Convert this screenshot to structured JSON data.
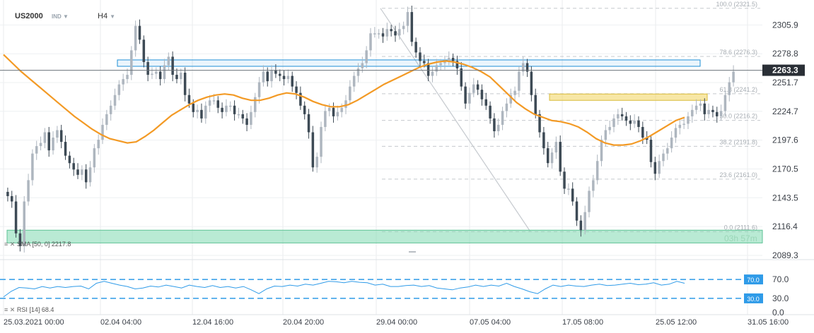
{
  "header": {
    "symbol": "US2000",
    "instrument_type": "IND",
    "timeframe": "H4"
  },
  "indicators": {
    "sma_label": "SMA [50, 0]",
    "sma_value": "2217.8",
    "rsi_label": "RSI [14]",
    "rsi_value": "68.4"
  },
  "countdown": "03h 57m",
  "colors": {
    "up_candle": "#aeb6bf",
    "down_candle": "#3d4a55",
    "sma": "#f39a25",
    "rsi_line": "#2f9be8",
    "rsi_levels": "#2f9be8",
    "resistance_zone": "#1e8fd6",
    "support_zone": "#f1d45d",
    "bottom_zone": "#7fd9b1",
    "price_badge": "#2a2f36",
    "fib_line": "#9aa0a6"
  },
  "chart_data": {
    "type": "candlestick",
    "price_axis": {
      "ticks": [
        "2305.9",
        "2278.8",
        "2251.7",
        "2224.7",
        "2197.6",
        "2170.5",
        "2143.5",
        "2116.4",
        "2089.3"
      ],
      "range": [
        2089.3,
        2326
      ],
      "current_price": "2263.3"
    },
    "time_axis": [
      "25.03.2021 00:00",
      "02.04 04:00",
      "12.04 16:00",
      "20.04 20:00",
      "29.04 00:00",
      "07.05 04:00",
      "17.05 08:00",
      "25.05 12:00",
      "31.05 16:00"
    ],
    "fibonacci": [
      {
        "label": "100.0 (2321.5)",
        "price": 2321.5
      },
      {
        "label": "78.6 (2276.3)",
        "price": 2276.3
      },
      {
        "label": "61.8 (2241.2)",
        "price": 2241.2
      },
      {
        "label": "50.0 (2216.2)",
        "price": 2216.2
      },
      {
        "label": "38.2 (2191.8)",
        "price": 2191.8
      },
      {
        "label": "23.6 (2161.0)",
        "price": 2161.0
      },
      {
        "label": "0.0 (2111.6)",
        "price": 2111.6
      }
    ],
    "zones": [
      {
        "name": "resistance",
        "from": 2267,
        "to": 2273
      },
      {
        "name": "support",
        "from": 2235,
        "to": 2241
      },
      {
        "name": "bottom",
        "from": 2101,
        "to": 2113
      }
    ],
    "closes": [
      2145,
      2140,
      2110,
      2098,
      2140,
      2160,
      2185,
      2192,
      2195,
      2205,
      2188,
      2200,
      2207,
      2196,
      2183,
      2176,
      2170,
      2165,
      2170,
      2158,
      2172,
      2190,
      2198,
      2212,
      2222,
      2230,
      2240,
      2250,
      2255,
      2259,
      2282,
      2305,
      2292,
      2271,
      2259,
      2260,
      2262,
      2255,
      2268,
      2276,
      2259,
      2255,
      2261,
      2240,
      2232,
      2224,
      2226,
      2218,
      2230,
      2235,
      2235,
      2228,
      2224,
      2230,
      2230,
      2222,
      2222,
      2218,
      2212,
      2224,
      2238,
      2252,
      2262,
      2253,
      2263,
      2260,
      2258,
      2255,
      2258,
      2248,
      2242,
      2230,
      2222,
      2205,
      2172,
      2182,
      2210,
      2225,
      2228,
      2220,
      2224,
      2228,
      2235,
      2248,
      2258,
      2265,
      2270,
      2282,
      2298,
      2298,
      2298,
      2295,
      2302,
      2300,
      2296,
      2302,
      2305,
      2318,
      2290,
      2280,
      2272,
      2270,
      2258,
      2262,
      2268,
      2270,
      2272,
      2275,
      2272,
      2265,
      2248,
      2232,
      2242,
      2250,
      2245,
      2236,
      2230,
      2218,
      2206,
      2212,
      2225,
      2232,
      2240,
      2244,
      2262,
      2270,
      2262,
      2240,
      2222,
      2205,
      2190,
      2176,
      2186,
      2196,
      2168,
      2152,
      2152,
      2140,
      2122,
      2113,
      2130,
      2150,
      2160,
      2178,
      2198,
      2207,
      2210,
      2218,
      2222,
      2220,
      2216,
      2213,
      2216,
      2210,
      2200,
      2198,
      2177,
      2166,
      2178,
      2185,
      2190,
      2200,
      2209,
      2212,
      2213,
      2220,
      2226,
      2230,
      2232,
      2222,
      2226,
      2224,
      2220,
      2225,
      2240,
      2252,
      2262
    ],
    "sma50": [
      2278,
      2270,
      2262,
      2255,
      2248,
      2241,
      2234,
      2227,
      2220,
      2214,
      2208,
      2203,
      2199,
      2197,
      2195,
      2196,
      2201,
      2207,
      2214,
      2221,
      2226,
      2231,
      2235,
      2238,
      2240,
      2241,
      2240,
      2237,
      2235,
      2235,
      2237,
      2240,
      2242,
      2241,
      2238,
      2234,
      2231,
      2229,
      2229,
      2231,
      2235,
      2240,
      2245,
      2250,
      2254,
      2258,
      2262,
      2266,
      2269,
      2271,
      2272,
      2271,
      2269,
      2266,
      2262,
      2257,
      2249,
      2241,
      2233,
      2227,
      2222,
      2219,
      2216,
      2215,
      2213,
      2210,
      2205,
      2199,
      2195,
      2193,
      2193,
      2194,
      2197,
      2201,
      2206,
      2211,
      2216,
      2219
    ],
    "rsi": [
      33,
      45,
      53,
      52,
      50,
      55,
      52,
      55,
      53,
      55,
      56,
      50,
      62,
      66,
      62,
      58,
      55,
      50,
      52,
      56,
      54,
      58,
      55,
      52,
      58,
      55,
      53,
      57,
      53,
      55,
      52,
      55,
      48,
      40,
      50,
      56,
      55,
      58,
      56,
      60,
      58,
      62,
      66,
      65,
      63,
      66,
      64,
      63,
      58,
      60,
      55,
      55,
      57,
      58,
      55,
      57,
      52,
      50,
      48,
      52,
      54,
      58,
      55,
      58,
      56,
      62,
      55,
      50,
      44,
      40,
      50,
      58,
      55,
      58,
      56,
      55,
      58,
      60,
      57,
      58,
      60,
      62,
      59,
      60,
      63,
      58,
      60,
      66,
      62
    ],
    "rsi_levels": [
      70.0,
      30.0
    ],
    "rsi_axis_ticks": [
      "70.0",
      "30.0",
      "0.0"
    ]
  }
}
